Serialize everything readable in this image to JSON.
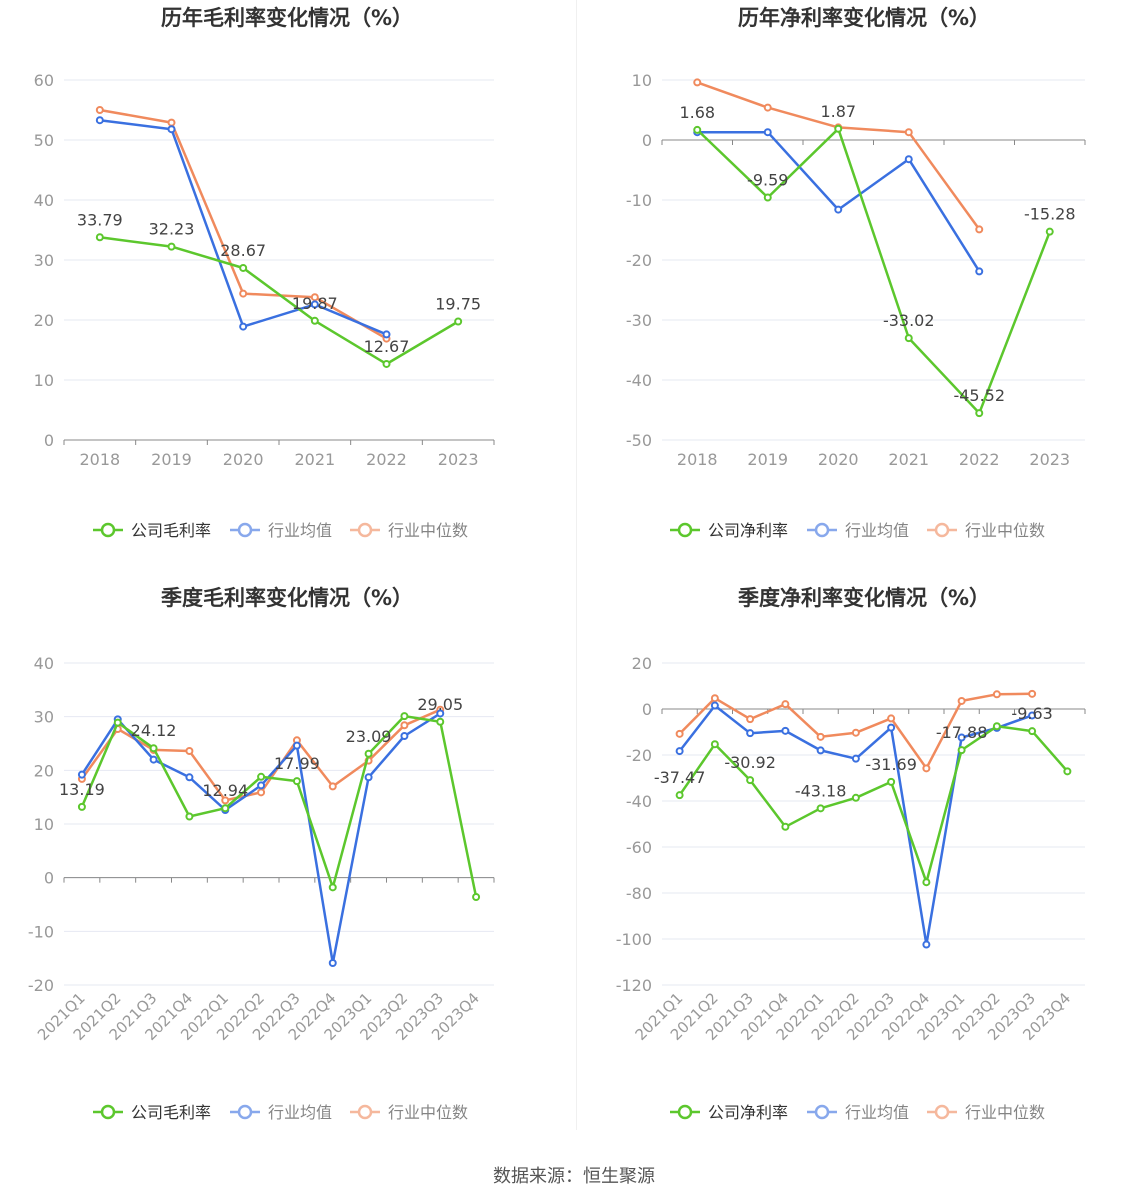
{
  "source": "数据来源：恒生聚源",
  "colors": {
    "company": "#5cc72d",
    "avg": "#3a70e0",
    "median": "#f08a5d",
    "axis": "#999999",
    "grid": "#e6e8f2",
    "title": "#333333"
  },
  "chart_data": [
    {
      "id": "annual-gross",
      "type": "line",
      "title": "历年毛利率变化情况（%）",
      "categories": [
        "2018",
        "2019",
        "2020",
        "2021",
        "2022",
        "2023"
      ],
      "ylim": [
        0,
        60
      ],
      "yticks": [
        0,
        10,
        20,
        30,
        40,
        50,
        60
      ],
      "rotate_labels": false,
      "series": [
        {
          "name": "公司毛利率",
          "key": "company",
          "values": [
            33.79,
            32.23,
            28.67,
            19.87,
            12.67,
            19.75
          ],
          "labels": [
            "33.79",
            "32.23",
            "28.67",
            "19.87",
            "12.67",
            "19.75"
          ]
        },
        {
          "name": "行业均值",
          "key": "avg",
          "values": [
            53.3,
            51.8,
            18.9,
            22.6,
            17.6,
            null
          ]
        },
        {
          "name": "行业中位数",
          "key": "median",
          "values": [
            55.0,
            52.9,
            24.4,
            23.8,
            16.9,
            null
          ]
        }
      ]
    },
    {
      "id": "annual-net",
      "type": "line",
      "title": "历年净利率变化情况（%）",
      "categories": [
        "2018",
        "2019",
        "2020",
        "2021",
        "2022",
        "2023"
      ],
      "ylim": [
        -50,
        10
      ],
      "yticks": [
        -50,
        -40,
        -30,
        -20,
        -10,
        0,
        10
      ],
      "rotate_labels": false,
      "series": [
        {
          "name": "公司净利率",
          "key": "company",
          "values": [
            1.68,
            -9.59,
            1.87,
            -33.02,
            -45.52,
            -15.28
          ],
          "labels": [
            "1.68",
            "-9.59",
            "1.87",
            "-33.02",
            "-45.52",
            "-15.28"
          ]
        },
        {
          "name": "行业均值",
          "key": "avg",
          "values": [
            1.3,
            1.3,
            -11.6,
            -3.2,
            -21.9,
            null
          ]
        },
        {
          "name": "行业中位数",
          "key": "median",
          "values": [
            9.6,
            5.4,
            2.1,
            1.3,
            -14.9,
            null
          ]
        }
      ]
    },
    {
      "id": "quarterly-gross",
      "type": "line",
      "title": "季度毛利率变化情况（%）",
      "categories": [
        "2021Q1",
        "2021Q2",
        "2021Q3",
        "2021Q4",
        "2022Q1",
        "2022Q2",
        "2022Q3",
        "2022Q4",
        "2023Q1",
        "2023Q2",
        "2023Q3",
        "2023Q4"
      ],
      "ylim": [
        -20,
        40
      ],
      "yticks": [
        -20,
        -10,
        0,
        10,
        20,
        30,
        40
      ],
      "rotate_labels": true,
      "series": [
        {
          "name": "公司毛利率",
          "key": "company",
          "values": [
            13.19,
            28.9,
            24.12,
            11.4,
            12.94,
            18.8,
            17.99,
            -1.8,
            23.09,
            30.1,
            29.05,
            -3.6
          ],
          "labels": [
            "13.19",
            "",
            "24.12",
            "",
            "12.94",
            "",
            "17.99",
            "",
            "23.09",
            "",
            "29.05",
            ""
          ]
        },
        {
          "name": "行业均值",
          "key": "avg",
          "values": [
            19.2,
            29.5,
            22.0,
            18.7,
            12.6,
            17.2,
            24.6,
            -15.9,
            18.7,
            26.4,
            30.6,
            null
          ]
        },
        {
          "name": "行业中位数",
          "key": "median",
          "values": [
            18.4,
            27.7,
            23.8,
            23.6,
            14.4,
            15.9,
            25.6,
            17.0,
            21.8,
            28.4,
            31.3,
            null
          ]
        }
      ]
    },
    {
      "id": "quarterly-net",
      "type": "line",
      "title": "季度净利率变化情况（%）",
      "categories": [
        "2021Q1",
        "2021Q2",
        "2021Q3",
        "2021Q4",
        "2022Q1",
        "2022Q2",
        "2022Q3",
        "2022Q4",
        "2023Q1",
        "2023Q2",
        "2023Q3",
        "2023Q4"
      ],
      "ylim": [
        -120,
        20
      ],
      "yticks": [
        -120,
        -100,
        -80,
        -60,
        -40,
        -20,
        0,
        20
      ],
      "rotate_labels": true,
      "series": [
        {
          "name": "公司净利率",
          "key": "company",
          "values": [
            -37.47,
            -15.3,
            -30.92,
            -51.2,
            -43.18,
            -38.6,
            -31.69,
            -75.3,
            -17.88,
            -7.5,
            -9.63,
            -27.1
          ],
          "labels": [
            "-37.47",
            "",
            "-30.92",
            "",
            "-43.18",
            "",
            "-31.69",
            "",
            "-17.88",
            "",
            "-9.63",
            ""
          ]
        },
        {
          "name": "行业均值",
          "key": "avg",
          "values": [
            -18.3,
            1.5,
            -10.5,
            -9.5,
            -18.0,
            -21.6,
            -8.1,
            -102.4,
            -12.4,
            -8.2,
            -2.8,
            null
          ]
        },
        {
          "name": "行业中位数",
          "key": "median",
          "values": [
            -10.8,
            4.7,
            -4.4,
            2.1,
            -12.1,
            -10.3,
            -4.1,
            -25.8,
            3.5,
            6.4,
            6.6,
            null
          ]
        }
      ]
    }
  ]
}
